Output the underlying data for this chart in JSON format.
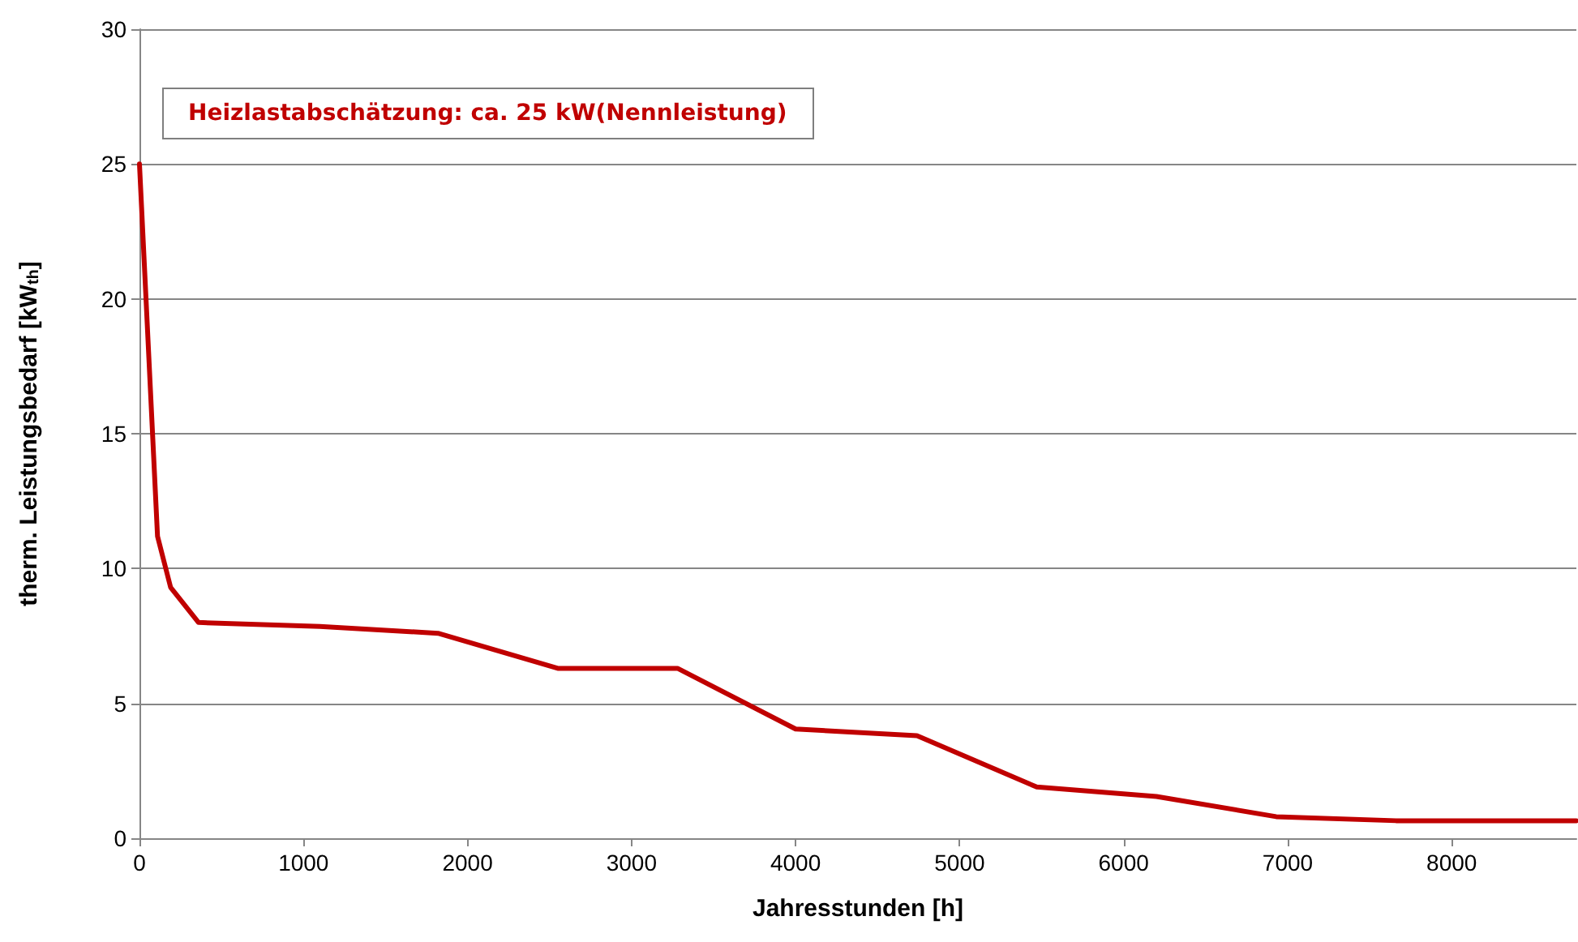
{
  "chart_data": {
    "type": "line",
    "xlabel": "Jahresstunden [h]",
    "ylabel": "therm. Leistungsbedarf [kW$_{th}$]",
    "annotations": [
      "Heizlastabschätzung: ca. 25 kW(Nennleistung)"
    ],
    "x": [
      0,
      110,
      190,
      360,
      1100,
      1820,
      2550,
      3280,
      4000,
      4740,
      5470,
      6200,
      6930,
      7660,
      8760
    ],
    "series": [
      {
        "color": "#c00000",
        "values": [
          25,
          11.2,
          9.3,
          8.0,
          7.85,
          7.6,
          6.3,
          6.3,
          4.05,
          3.8,
          1.9,
          1.55,
          0.8,
          0.65,
          0.65
        ]
      }
    ],
    "xlim": [
      0,
      8760
    ],
    "xticks": [
      0,
      1000,
      2000,
      3000,
      4000,
      5000,
      6000,
      7000,
      8000
    ],
    "ylim": [
      0,
      30
    ],
    "yticks": [
      0,
      5,
      10,
      15,
      20,
      25,
      30
    ],
    "grid": "y",
    "marker": "none",
    "line_style": "solid"
  }
}
